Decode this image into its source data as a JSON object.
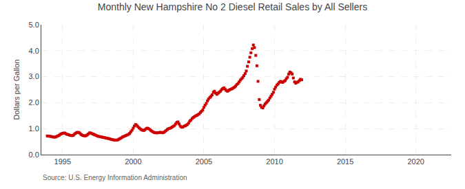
{
  "chart_data": {
    "type": "scatter",
    "title": "Monthly New Hampshire No 2 Diesel Retail Sales by All Sellers",
    "ylabel": "Dollars per Gallon",
    "annotations": [
      "Source: U.S. Energy Information Administration"
    ],
    "color": "#cc0000",
    "marker": "square",
    "grid": true,
    "xlim": [
      1993.5,
      2022.5
    ],
    "ylim": [
      0.0,
      5.0
    ],
    "xticks": [
      1995,
      2000,
      2005,
      2010,
      2015,
      2020
    ],
    "yticks": [
      {
        "value": 0.0,
        "label": "0.0"
      },
      {
        "value": 1.0,
        "label": "1.0"
      },
      {
        "value": 2.0,
        "label": "2.0"
      },
      {
        "value": 3.0,
        "label": "3.0"
      },
      {
        "value": 4.0,
        "label": "4.0"
      },
      {
        "value": 5.0,
        "label": "5.0"
      }
    ],
    "x": [
      1993.92,
      1994.0,
      1994.08,
      1994.17,
      1994.25,
      1994.33,
      1994.42,
      1994.5,
      1994.58,
      1994.67,
      1994.75,
      1994.83,
      1994.92,
      1995.0,
      1995.08,
      1995.17,
      1995.25,
      1995.33,
      1995.42,
      1995.5,
      1995.58,
      1995.67,
      1995.75,
      1995.83,
      1995.92,
      1996.0,
      1996.08,
      1996.17,
      1996.25,
      1996.33,
      1996.42,
      1996.5,
      1996.58,
      1996.67,
      1996.75,
      1996.83,
      1996.92,
      1997.0,
      1997.08,
      1997.17,
      1997.25,
      1997.33,
      1997.42,
      1997.5,
      1997.58,
      1997.67,
      1997.75,
      1997.83,
      1997.92,
      1998.0,
      1998.08,
      1998.17,
      1998.25,
      1998.33,
      1998.42,
      1998.5,
      1998.58,
      1998.67,
      1998.75,
      1998.83,
      1998.92,
      1999.0,
      1999.08,
      1999.17,
      1999.25,
      1999.33,
      1999.42,
      1999.5,
      1999.58,
      1999.67,
      1999.75,
      1999.83,
      1999.92,
      2000.0,
      2000.08,
      2000.17,
      2000.25,
      2000.33,
      2000.42,
      2000.5,
      2000.58,
      2000.67,
      2000.75,
      2000.83,
      2000.92,
      2001.0,
      2001.08,
      2001.17,
      2001.25,
      2001.33,
      2001.42,
      2001.5,
      2001.58,
      2001.67,
      2001.75,
      2001.83,
      2001.92,
      2002.0,
      2002.08,
      2002.17,
      2002.25,
      2002.33,
      2002.42,
      2002.5,
      2002.58,
      2002.67,
      2002.75,
      2002.83,
      2002.92,
      2003.0,
      2003.08,
      2003.17,
      2003.25,
      2003.33,
      2003.42,
      2003.5,
      2003.58,
      2003.67,
      2003.75,
      2003.83,
      2003.92,
      2004.0,
      2004.08,
      2004.17,
      2004.25,
      2004.33,
      2004.42,
      2004.5,
      2004.58,
      2004.67,
      2004.75,
      2004.83,
      2004.92,
      2005.0,
      2005.08,
      2005.17,
      2005.25,
      2005.33,
      2005.42,
      2005.5,
      2005.58,
      2005.67,
      2005.75,
      2005.83,
      2005.92,
      2006.0,
      2006.08,
      2006.17,
      2006.25,
      2006.33,
      2006.42,
      2006.5,
      2006.58,
      2006.67,
      2006.75,
      2006.83,
      2006.92,
      2007.0,
      2007.08,
      2007.17,
      2007.25,
      2007.33,
      2007.42,
      2007.5,
      2007.58,
      2007.67,
      2007.75,
      2007.83,
      2007.92,
      2008.0,
      2008.08,
      2008.17,
      2008.25,
      2008.33,
      2008.42,
      2008.5,
      2008.58,
      2008.67,
      2008.75,
      2008.83,
      2008.92,
      2009.0,
      2009.08,
      2009.17,
      2009.25,
      2009.33,
      2009.42,
      2009.5,
      2009.58,
      2009.67,
      2009.75,
      2009.83,
      2009.92,
      2010.0,
      2010.08,
      2010.17,
      2010.25,
      2010.33,
      2010.42,
      2010.5,
      2010.58,
      2010.67,
      2010.75,
      2010.83,
      2010.92,
      2011.0,
      2011.08,
      2011.17,
      2011.25,
      2011.33,
      2011.42,
      2011.5,
      2011.58,
      2011.67,
      2011.75,
      2011.83,
      2011.92
    ],
    "values": [
      0.72,
      0.71,
      0.71,
      0.7,
      0.69,
      0.68,
      0.67,
      0.68,
      0.7,
      0.72,
      0.74,
      0.78,
      0.8,
      0.82,
      0.83,
      0.83,
      0.8,
      0.78,
      0.77,
      0.75,
      0.74,
      0.73,
      0.74,
      0.78,
      0.82,
      0.85,
      0.86,
      0.85,
      0.81,
      0.77,
      0.74,
      0.73,
      0.72,
      0.73,
      0.76,
      0.8,
      0.84,
      0.83,
      0.81,
      0.79,
      0.77,
      0.75,
      0.73,
      0.71,
      0.7,
      0.69,
      0.68,
      0.67,
      0.66,
      0.65,
      0.64,
      0.63,
      0.62,
      0.61,
      0.59,
      0.58,
      0.57,
      0.56,
      0.56,
      0.56,
      0.57,
      0.6,
      0.62,
      0.65,
      0.68,
      0.7,
      0.72,
      0.74,
      0.76,
      0.78,
      0.82,
      0.88,
      0.94,
      1.02,
      1.1,
      1.16,
      1.13,
      1.08,
      1.03,
      0.99,
      0.96,
      0.94,
      0.93,
      0.96,
      1.0,
      1.02,
      1.0,
      0.97,
      0.93,
      0.9,
      0.87,
      0.85,
      0.84,
      0.84,
      0.84,
      0.85,
      0.86,
      0.85,
      0.84,
      0.86,
      0.89,
      0.93,
      0.97,
      1.0,
      1.01,
      1.03,
      1.06,
      1.09,
      1.12,
      1.18,
      1.24,
      1.26,
      1.18,
      1.1,
      1.06,
      1.06,
      1.09,
      1.11,
      1.13,
      1.16,
      1.21,
      1.29,
      1.33,
      1.39,
      1.43,
      1.46,
      1.49,
      1.51,
      1.54,
      1.57,
      1.62,
      1.67,
      1.72,
      1.82,
      1.9,
      1.97,
      2.07,
      2.14,
      2.2,
      2.24,
      2.3,
      2.4,
      2.44,
      2.37,
      2.32,
      2.36,
      2.4,
      2.44,
      2.5,
      2.54,
      2.57,
      2.52,
      2.47,
      2.44,
      2.47,
      2.5,
      2.52,
      2.54,
      2.57,
      2.6,
      2.64,
      2.7,
      2.74,
      2.8,
      2.87,
      2.92,
      2.97,
      3.04,
      3.12,
      3.22,
      3.4,
      3.57,
      3.75,
      3.92,
      4.08,
      4.22,
      4.12,
      3.82,
      3.42,
      2.82,
      2.12,
      1.9,
      1.82,
      1.8,
      1.88,
      1.95,
      2.0,
      2.05,
      2.1,
      2.18,
      2.25,
      2.32,
      2.4,
      2.52,
      2.6,
      2.68,
      2.72,
      2.78,
      2.82,
      2.8,
      2.78,
      2.82,
      2.85,
      2.92,
      2.98,
      3.1,
      3.18,
      3.15,
      3.1,
      2.95,
      2.8,
      2.75,
      2.78,
      2.8,
      2.85,
      2.9,
      2.88
    ]
  }
}
